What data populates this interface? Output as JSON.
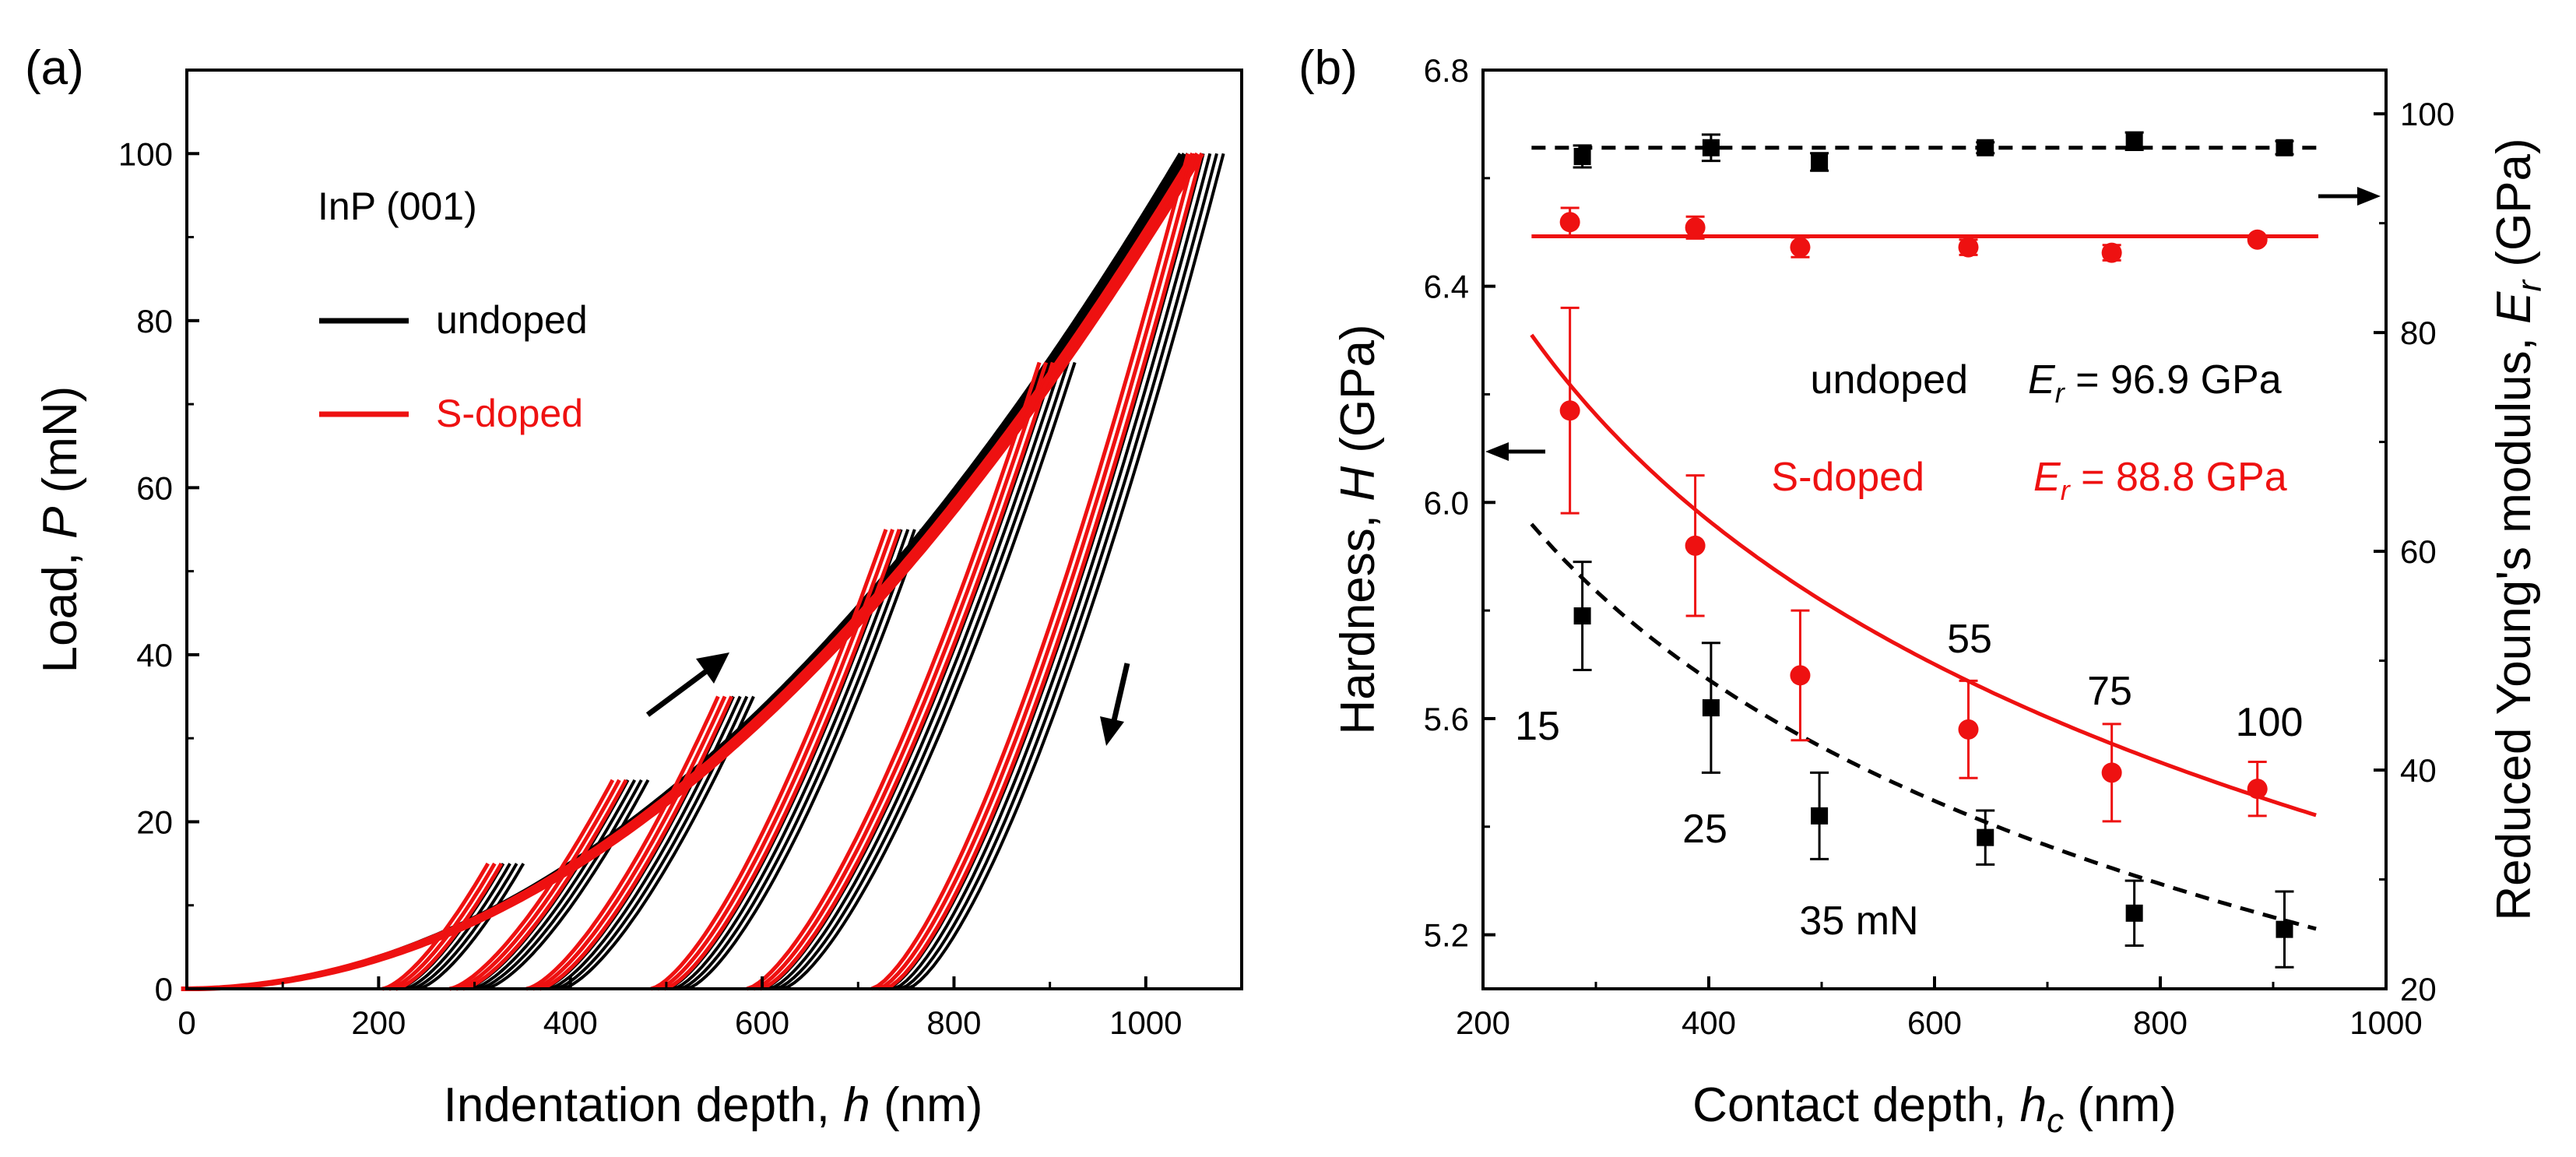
{
  "colors": {
    "undoped": "#000000",
    "s_doped": "#ee1111"
  },
  "chart_data": [
    {
      "type": "line",
      "panel_label": "(a)",
      "title": "InP (001)",
      "xlabel": "Indentation depth, ",
      "xlabel_var": "h",
      "xlabel_unit": " (nm)",
      "ylabel": "Load, ",
      "ylabel_var": "P",
      "ylabel_unit": " (mN)",
      "xlim": [
        0,
        1100
      ],
      "ylim": [
        0,
        110
      ],
      "xticks": [
        "0",
        "200",
        "400",
        "600",
        "800",
        "1000"
      ],
      "yticks": [
        "0",
        "20",
        "40",
        "60",
        "80",
        "100"
      ],
      "legend": [
        {
          "name": "undoped",
          "color": "#000000"
        },
        {
          "name": "S-doped",
          "color": "#ee1111"
        }
      ],
      "loading_curve": {
        "peak_load": 100,
        "depth_at_peak": {
          "undoped": 1040,
          "S-doped": 1055
        }
      },
      "cycles": [
        {
          "max_load": 15,
          "max_depth": 340,
          "residual_depth": 230
        },
        {
          "max_load": 25,
          "max_depth": 470,
          "residual_depth": 300
        },
        {
          "max_load": 35,
          "max_depth": 580,
          "residual_depth": 380
        },
        {
          "max_load": 55,
          "max_depth": 755,
          "residual_depth": 510
        },
        {
          "max_load": 75,
          "max_depth": 915,
          "residual_depth": 610
        },
        {
          "max_load": 100,
          "max_depth": 1070,
          "residual_depth": 740
        }
      ]
    },
    {
      "type": "scatter",
      "panel_label": "(b)",
      "xlabel": "Contact depth, ",
      "xlabel_var": "h",
      "xlabel_sub": "c",
      "xlabel_unit": " (nm)",
      "ylabel": "Hardness, ",
      "ylabel_var": "H",
      "ylabel_unit": " (GPa)",
      "y2label": "Reduced Young's modulus, ",
      "y2label_var": "E",
      "y2label_sub": "r",
      "y2label_unit": " (GPa)",
      "xlim": [
        200,
        1000
      ],
      "ylim": [
        5.1,
        6.8
      ],
      "y2lim": [
        20,
        104
      ],
      "xticks": [
        "200",
        "400",
        "600",
        "800",
        "1000"
      ],
      "yticks": [
        "5.2",
        "5.6",
        "6.0",
        "6.4",
        "6.8"
      ],
      "y2ticks": [
        "20",
        "40",
        "60",
        "80",
        "100"
      ],
      "series": [
        {
          "name": "undoped",
          "color": "#000000",
          "marker": "square",
          "quantity": "H",
          "x": [
            288,
            402,
            498,
            645,
            777,
            910
          ],
          "y": [
            5.79,
            5.62,
            5.42,
            5.38,
            5.24,
            5.21
          ],
          "err": [
            0.1,
            0.12,
            0.08,
            0.05,
            0.06,
            0.07
          ],
          "fit": {
            "style": "dashed",
            "x0": 243,
            "x1": 940,
            "y_at_x0": 5.96,
            "y_at_x1": 5.21
          }
        },
        {
          "name": "S-doped",
          "color": "#ee1111",
          "marker": "circle",
          "quantity": "H",
          "x": [
            277,
            388,
            481,
            630,
            757,
            886
          ],
          "y": [
            6.17,
            5.92,
            5.68,
            5.58,
            5.5,
            5.47
          ],
          "err": [
            0.19,
            0.13,
            0.12,
            0.09,
            0.09,
            0.05
          ],
          "fit": {
            "style": "solid",
            "x0": 243,
            "x1": 940,
            "y_at_x0": 6.31,
            "y_at_x1": 5.42
          }
        },
        {
          "name": "undoped",
          "color": "#000000",
          "marker": "square",
          "quantity": "Er",
          "x": [
            288,
            402,
            498,
            645,
            777,
            910
          ],
          "y": [
            96.1,
            96.9,
            95.6,
            96.9,
            97.5,
            96.9
          ],
          "err": [
            1.0,
            1.2,
            0.8,
            0.5,
            0.8,
            0.6
          ],
          "fit_value": 96.9,
          "fit_style": "dashed"
        },
        {
          "name": "S-doped",
          "color": "#ee1111",
          "marker": "circle",
          "quantity": "Er",
          "x": [
            277,
            388,
            481,
            630,
            757,
            886
          ],
          "y": [
            90.1,
            89.6,
            87.8,
            87.8,
            87.3,
            88.5
          ],
          "err": [
            1.3,
            1.0,
            0.9,
            0.7,
            0.7,
            0.3
          ],
          "fit_value": 88.8,
          "fit_style": "solid"
        }
      ],
      "annotations": {
        "undoped_name": "undoped",
        "undoped_er": " = 96.9 GPa",
        "sdoped_name": "S-doped",
        "sdoped_er": " = 88.8 GPa",
        "er_var": "E",
        "er_sub": "r",
        "loads": [
          "15",
          "25",
          "35 mN",
          "55",
          "75",
          "100"
        ]
      }
    }
  ]
}
